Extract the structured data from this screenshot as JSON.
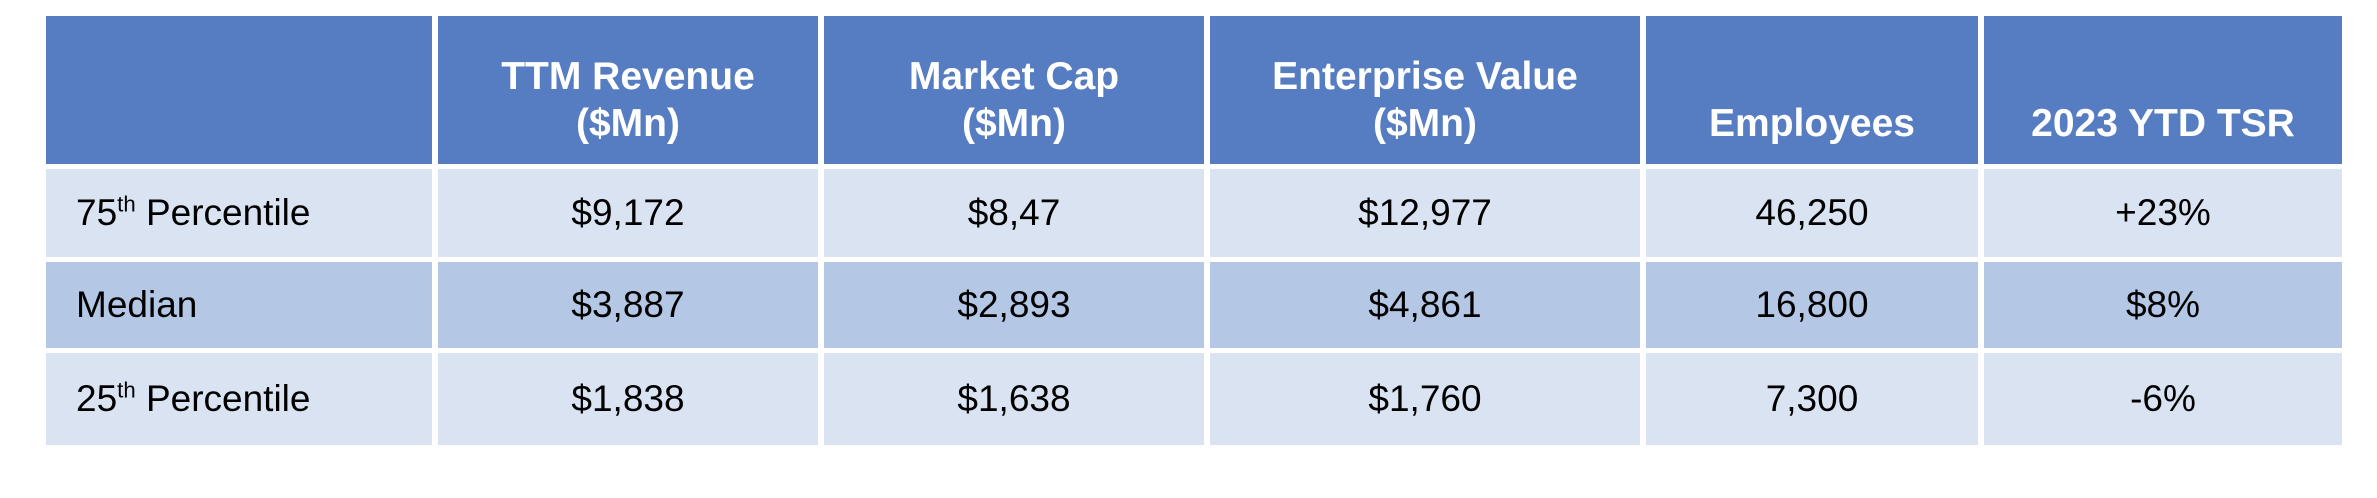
{
  "colors": {
    "header_bg": "#567CC2",
    "row_light_bg": "#DAE3F2",
    "row_medium_bg": "#B4C7E4",
    "header_text": "#FFFFFF",
    "body_text": "#000000"
  },
  "table": {
    "header": {
      "col0": "",
      "col1": "TTM Revenue\n($Mn)",
      "col2": "Market Cap\n($Mn)",
      "col3": "Enterprise Value\n($Mn)",
      "col4": "Employees",
      "col5": "2023 YTD TSR"
    },
    "rows": [
      {
        "label": {
          "prefix": "75",
          "sup": "th",
          "suffix": " Percentile"
        },
        "ttm_revenue": "$9,172",
        "market_cap": "$8,47",
        "enterprise_value": "$12,977",
        "employees": "46,250",
        "ytd_tsr": "+23%",
        "shade": "light"
      },
      {
        "label": {
          "prefix": "Median",
          "sup": "",
          "suffix": ""
        },
        "ttm_revenue": "$3,887",
        "market_cap": "$2,893",
        "enterprise_value": "$4,861",
        "employees": "16,800",
        "ytd_tsr": "$8%",
        "shade": "medium"
      },
      {
        "label": {
          "prefix": "25",
          "sup": "th",
          "suffix": " Percentile"
        },
        "ttm_revenue": "$1,838",
        "market_cap": "$1,638",
        "enterprise_value": "$1,760",
        "employees": "7,300",
        "ytd_tsr": "-6%",
        "shade": "light"
      }
    ]
  }
}
